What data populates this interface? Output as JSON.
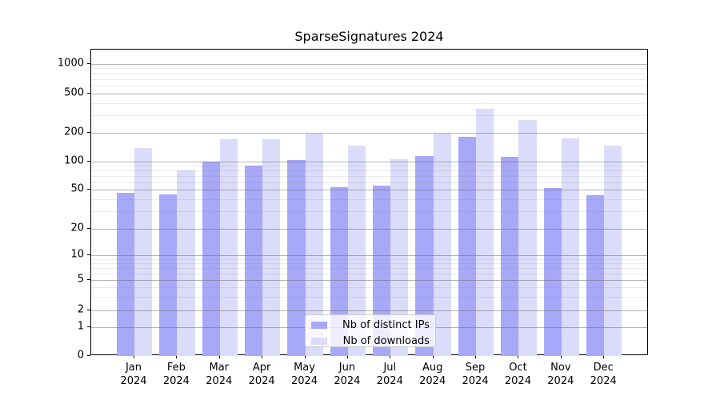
{
  "chart_data": {
    "type": "bar",
    "title": "SparseSignatures 2024",
    "categories": [
      "Jan 2024",
      "Feb 2024",
      "Mar 2024",
      "Apr 2024",
      "May 2024",
      "Jun 2024",
      "Jul 2024",
      "Aug 2024",
      "Sep 2024",
      "Oct 2024",
      "Nov 2024",
      "Dec 2024"
    ],
    "series": [
      {
        "name": "Nb of distinct IPs",
        "color": "#a8a8f8",
        "values": [
          46,
          45,
          100,
          90,
          103,
          53,
          55,
          115,
          180,
          112,
          52,
          44
        ]
      },
      {
        "name": "Nb of downloads",
        "color": "#dbdbfa",
        "values": [
          140,
          80,
          172,
          170,
          197,
          148,
          105,
          195,
          350,
          270,
          175,
          148
        ]
      }
    ],
    "yscale": "symlog",
    "ylim": [
      0,
      1400
    ],
    "y_ticks": [
      0,
      1,
      2,
      5,
      10,
      20,
      50,
      100,
      200,
      500,
      1000
    ],
    "y_tick_labels": [
      "0",
      "1",
      "2",
      "5",
      "10",
      "20",
      "50",
      "100",
      "200",
      "500",
      "1000"
    ],
    "y_minor_ticks": [
      3,
      4,
      6,
      7,
      8,
      9,
      30,
      40,
      60,
      70,
      80,
      90,
      300,
      400,
      600,
      700,
      800,
      900
    ],
    "xlabel": "",
    "ylabel": "",
    "grid": true,
    "grid_on_top": true,
    "legend_position": "lower center"
  }
}
